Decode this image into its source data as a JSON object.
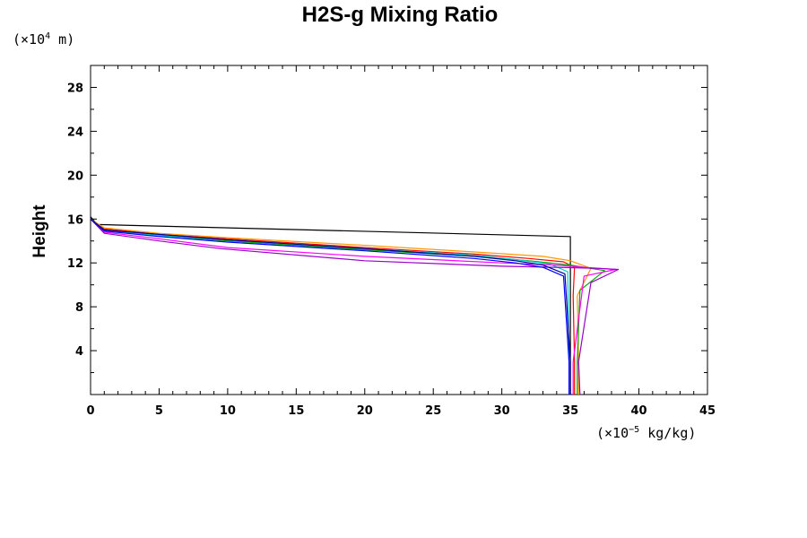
{
  "chart_data": {
    "type": "line",
    "title": "H2S-g Mixing Ratio",
    "ylabel": "Height",
    "yunit_prefix": "(×10",
    "yunit_exp": "4",
    "yunit_suffix": " m)",
    "xunit_prefix": "(×10",
    "xunit_exp": "−5",
    "xunit_suffix": " kg/kg)",
    "xlim": [
      0,
      45
    ],
    "ylim": [
      0,
      30
    ],
    "xticks": [
      0,
      5,
      10,
      15,
      20,
      25,
      30,
      35,
      40,
      45
    ],
    "yticks": [
      4,
      8,
      12,
      16,
      20,
      24,
      28
    ],
    "xtick_labels": [
      "0",
      "5",
      "10",
      "15",
      "20",
      "25",
      "30",
      "35",
      "40",
      "45"
    ],
    "ytick_labels": [
      "4",
      "8",
      "12",
      "16",
      "20",
      "24",
      "28"
    ],
    "grid": false,
    "series": [
      {
        "color": "#000000",
        "x": [
          0,
          0.5,
          35,
          35,
          35
        ],
        "y": [
          16.2,
          15.5,
          14.4,
          14.4,
          0
        ]
      },
      {
        "color": "#ff0000",
        "x": [
          0,
          1,
          5,
          10,
          20,
          28,
          32,
          34.5,
          35.3,
          35.2,
          35.3,
          35.3
        ],
        "y": [
          16,
          15.1,
          14.6,
          14.2,
          13.4,
          12.8,
          12.4,
          12.1,
          11.6,
          9,
          3,
          0
        ]
      },
      {
        "color": "#ff9900",
        "x": [
          0,
          1,
          5,
          10,
          20,
          28,
          33,
          35,
          36.5,
          35.5,
          35.6,
          35.6
        ],
        "y": [
          16,
          15.2,
          14.7,
          14.3,
          13.6,
          13.0,
          12.6,
          12.2,
          11.5,
          9,
          3,
          0
        ]
      },
      {
        "color": "#00aa00",
        "x": [
          0,
          1,
          5,
          10,
          20,
          28,
          32,
          35,
          37.5,
          35.7,
          35.5,
          35.5
        ],
        "y": [
          16,
          15.0,
          14.5,
          14.0,
          13.2,
          12.6,
          12.2,
          11.8,
          11.3,
          9.5,
          3,
          0
        ]
      },
      {
        "color": "#00cccc",
        "x": [
          0,
          1,
          5,
          10,
          20,
          28,
          31,
          33.5,
          34.8,
          34.9,
          34.9
        ],
        "y": [
          16,
          15.0,
          14.5,
          14.1,
          13.3,
          12.7,
          12.3,
          11.9,
          11.2,
          3,
          0
        ]
      },
      {
        "color": "#ff00ff",
        "x": [
          0,
          1,
          5,
          10,
          20,
          30,
          34,
          36,
          38.3,
          36,
          35.2,
          35.2
        ],
        "y": [
          16,
          14.8,
          14.2,
          13.4,
          12.6,
          12.0,
          11.8,
          11.6,
          11.4,
          10.8,
          3,
          0
        ]
      },
      {
        "color": "#9900cc",
        "x": [
          0,
          1,
          5,
          9.5,
          20,
          30,
          34,
          37,
          38.5,
          36.5,
          35.6,
          35.7
        ],
        "y": [
          16,
          14.7,
          14.0,
          13.3,
          12.2,
          11.7,
          11.6,
          11.5,
          11.4,
          10.2,
          3,
          0
        ]
      },
      {
        "color": "#0000ff",
        "x": [
          0,
          1,
          5,
          10,
          20,
          28,
          31,
          33,
          34.5,
          34.9,
          34.9
        ],
        "y": [
          16,
          14.9,
          14.4,
          13.9,
          13.1,
          12.4,
          12.0,
          11.6,
          10.8,
          3,
          0
        ]
      },
      {
        "color": "#000099",
        "x": [
          0,
          1,
          5,
          10,
          20,
          28,
          31,
          33,
          34.6,
          35.0,
          35.0
        ],
        "y": [
          16,
          15.0,
          14.6,
          14.1,
          13.3,
          12.6,
          12.2,
          11.8,
          11.0,
          3,
          0
        ]
      }
    ]
  }
}
